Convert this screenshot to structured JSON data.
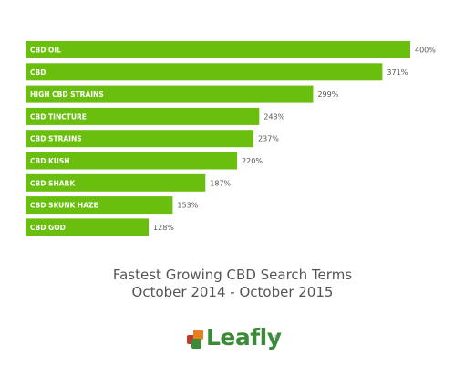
{
  "chart_data": {
    "type": "bar",
    "orientation": "horizontal",
    "categories": [
      "CBD OIL",
      "CBD",
      "HIGH CBD STRAINS",
      "CBD TINCTURE",
      "CBD STRAINS",
      "CBD KUSH",
      "CBD SHARK",
      "CBD SKUNK HAZE",
      "CBD GOD"
    ],
    "values": [
      400,
      371,
      299,
      243,
      237,
      220,
      187,
      153,
      128
    ],
    "value_labels": [
      "400%",
      "371%",
      "299%",
      "243%",
      "237%",
      "220%",
      "187%",
      "153%",
      "128%"
    ],
    "title": "Fastest Growing CBD Search Terms",
    "subtitle": "October 2014 - October 2015",
    "bar_color": "#6abf0e",
    "xlim": [
      0,
      400
    ],
    "grid": false
  },
  "logo": {
    "text": "Leafly",
    "registered_mark": "®",
    "colors": {
      "text": "#3b8a37",
      "red": "#c0392b",
      "orange": "#e67e22",
      "green": "#3b8a37"
    }
  }
}
